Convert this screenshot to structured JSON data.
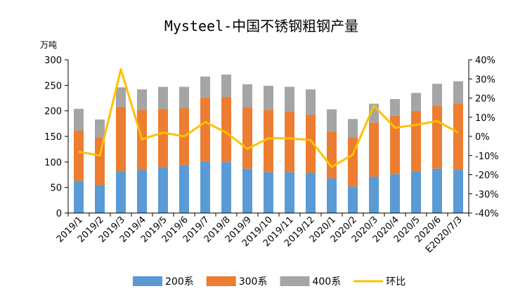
{
  "chart_data": {
    "type": "bar",
    "title": "Mysteel-中国不锈钢粗钢产量",
    "ylabel": "万吨",
    "categories": [
      "2019/1",
      "2019/2",
      "2019/3",
      "2019/4",
      "2019/5",
      "2019/6",
      "2019/7",
      "2019/8",
      "2019/9",
      "2019/10",
      "2019/11",
      "2019/12",
      "2020/1",
      "2020/2",
      "2020/3",
      "2020/4",
      "2020/5",
      "2020/6",
      "E2020/7/3"
    ],
    "series": [
      {
        "name": "200系",
        "kind": "bar",
        "axis": "left",
        "color": "#5B9BD5",
        "values": [
          63,
          55,
          82,
          84,
          90,
          94,
          101,
          100,
          87,
          80,
          80,
          79,
          68,
          52,
          71,
          76,
          82,
          87,
          85
        ]
      },
      {
        "name": "300系",
        "kind": "bar",
        "axis": "left",
        "color": "#ED7D31",
        "values": [
          98,
          93,
          126,
          118,
          114,
          111,
          125,
          127,
          120,
          122,
          119,
          113,
          92,
          96,
          106,
          114,
          118,
          123,
          129
        ]
      },
      {
        "name": "400系",
        "kind": "bar",
        "axis": "left",
        "color": "#A5A5A5",
        "values": [
          43,
          35,
          38,
          40,
          43,
          42,
          41,
          44,
          45,
          47,
          48,
          50,
          43,
          36,
          37,
          33,
          35,
          43,
          44
        ]
      },
      {
        "name": "环比",
        "kind": "line",
        "axis": "right",
        "color": "#FFC000",
        "values": [
          -8,
          -10,
          35,
          -1.5,
          2,
          0,
          7.5,
          2,
          -6.5,
          -1,
          -1,
          -2,
          -16,
          -9.5,
          16,
          4.5,
          6,
          8,
          2
        ]
      }
    ],
    "ylim": [
      0,
      300
    ],
    "yticks": [
      "0",
      "50",
      "100",
      "150",
      "200",
      "250",
      "300"
    ],
    "y2lim": [
      -40,
      40
    ],
    "y2ticks": [
      "-40%",
      "-30%",
      "-20%",
      "-10%",
      "0%",
      "10%",
      "20%",
      "30%",
      "40%"
    ],
    "grid": false,
    "legend_position": "bottom"
  }
}
